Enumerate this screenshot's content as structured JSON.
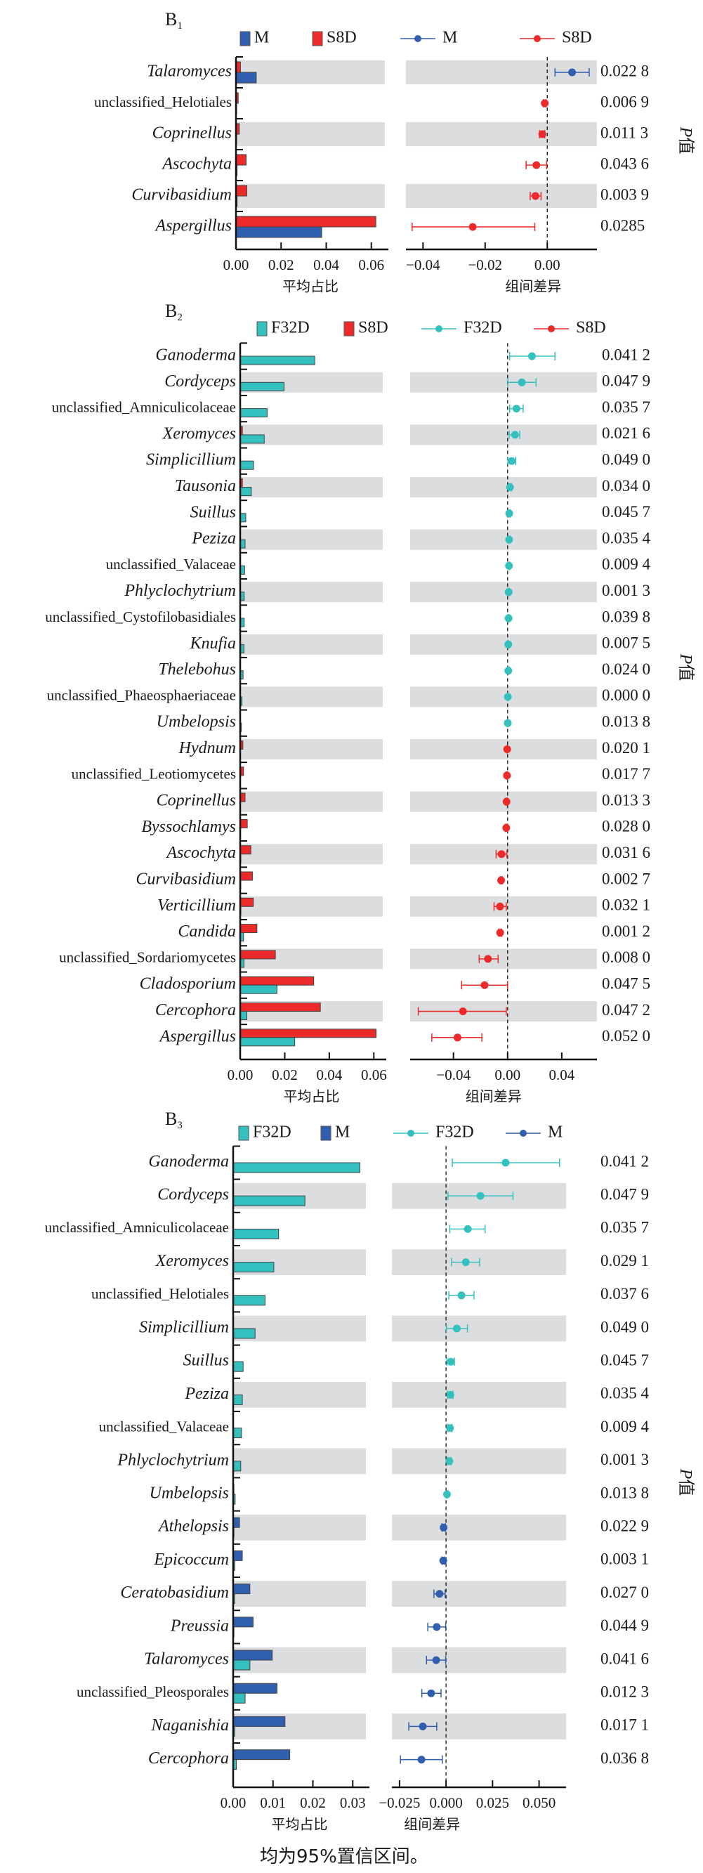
{
  "colors": {
    "M": "#2f5fae",
    "S8D": "#ec2a2a",
    "F32D": "#35c0c0",
    "band": "#dcdddf",
    "axis": "#111111"
  },
  "footnote": "均为95%置信区间。",
  "chart_data": [
    {
      "type": "bar",
      "panel_label": "B",
      "panel_sub": "1",
      "groups": [
        "M",
        "S8D"
      ],
      "legend": {
        "bar": [
          "M",
          "S8D"
        ],
        "point": [
          "M",
          "S8D"
        ]
      },
      "xlabel_left": "平均占比",
      "xlabel_right": "组间差异",
      "p_label": "P值",
      "left_xlim": [
        0,
        0.066
      ],
      "left_ticks": [
        "0.00",
        "0.02",
        "0.04",
        "0.06"
      ],
      "left_tick_values": [
        0,
        0.02,
        0.04,
        0.06
      ],
      "right_xlim": [
        -0.0455,
        0.016
      ],
      "right_ticks": [
        "−0.04",
        "−0.02",
        "0.00"
      ],
      "right_tick_values": [
        -0.04,
        -0.02,
        0
      ],
      "rows": [
        {
          "name": "Talaromyces",
          "italic": true,
          "bars": {
            "S8D": 0.002,
            "M": 0.009
          },
          "diff": 0.008,
          "ci": [
            0.0025,
            0.0135
          ],
          "higher": "M",
          "p": "0.022 8"
        },
        {
          "name": "unclassified_Helotiales",
          "italic": false,
          "bars": {
            "S8D": 0.001,
            "M": 0.0003
          },
          "diff": -0.0008,
          "ci": [
            -0.0012,
            -0.0004
          ],
          "higher": "S8D",
          "p": "0.006 9"
        },
        {
          "name": "Coprinellus",
          "italic": true,
          "bars": {
            "S8D": 0.0015,
            "M": 0.0003
          },
          "diff": -0.0016,
          "ci": [
            -0.0025,
            -0.0008
          ],
          "higher": "S8D",
          "p": "0.011 3"
        },
        {
          "name": "Ascochyta",
          "italic": true,
          "bars": {
            "S8D": 0.0045,
            "M": 0.0005
          },
          "diff": -0.0035,
          "ci": [
            -0.0068,
            -0.0002
          ],
          "higher": "S8D",
          "p": "0.043 6"
        },
        {
          "name": "Curvibasidium",
          "italic": true,
          "bars": {
            "S8D": 0.0048,
            "M": 0.0005
          },
          "diff": -0.0038,
          "ci": [
            -0.0055,
            -0.002
          ],
          "higher": "S8D",
          "p": "0.003 9"
        },
        {
          "name": "Aspergillus",
          "italic": true,
          "bars": {
            "S8D": 0.062,
            "M": 0.038
          },
          "diff": -0.024,
          "ci": [
            -0.0435,
            -0.004
          ],
          "higher": "S8D",
          "p": "0.0285"
        }
      ]
    },
    {
      "type": "bar",
      "panel_label": "B",
      "panel_sub": "2",
      "groups": [
        "F32D",
        "S8D"
      ],
      "legend": {
        "bar": [
          "F32D",
          "S8D"
        ],
        "point": [
          "F32D",
          "S8D"
        ]
      },
      "xlabel_left": "平均占比",
      "xlabel_right": "组间差异",
      "p_label": "P值",
      "left_xlim": [
        0,
        0.064
      ],
      "left_ticks": [
        "0.00",
        "0.02",
        "0.04",
        "0.06"
      ],
      "left_tick_values": [
        0,
        0.02,
        0.04,
        0.06
      ],
      "right_xlim": [
        -0.072,
        0.066
      ],
      "right_ticks": [
        "−0.04",
        "0.00",
        "0.04"
      ],
      "right_tick_values": [
        -0.04,
        0,
        0.04
      ],
      "rows": [
        {
          "name": "Ganoderma",
          "italic": true,
          "bars": {
            "F32D": 0.0335,
            "S8D": 0
          },
          "diff": 0.018,
          "ci": [
            0.0015,
            0.035
          ],
          "higher": "F32D",
          "p": "0.041 2"
        },
        {
          "name": "Cordyceps",
          "italic": true,
          "bars": {
            "F32D": 0.0197,
            "S8D": 0
          },
          "diff": 0.0105,
          "ci": [
            0.0002,
            0.021
          ],
          "higher": "F32D",
          "p": "0.047 9"
        },
        {
          "name": "unclassified_Amniculicolaceae",
          "italic": false,
          "bars": {
            "F32D": 0.0121,
            "S8D": 0
          },
          "diff": 0.0065,
          "ci": [
            0.0015,
            0.0115
          ],
          "higher": "F32D",
          "p": "0.035 7"
        },
        {
          "name": "Xeromyces",
          "italic": true,
          "bars": {
            "F32D": 0.0108,
            "S8D": 0.001
          },
          "diff": 0.0055,
          "ci": [
            0.0012,
            0.009
          ],
          "higher": "F32D",
          "p": "0.021 6"
        },
        {
          "name": "Simplicillium",
          "italic": true,
          "bars": {
            "F32D": 0.006,
            "S8D": 0
          },
          "diff": 0.003,
          "ci": [
            0.0002,
            0.006
          ],
          "higher": "F32D",
          "p": "0.049 0"
        },
        {
          "name": "Tausonia",
          "italic": true,
          "bars": {
            "F32D": 0.005,
            "S8D": 0.001
          },
          "diff": 0.0018,
          "ci": [
            0.0008,
            0.0028
          ],
          "higher": "F32D",
          "p": "0.034 0"
        },
        {
          "name": "Suillus",
          "italic": true,
          "bars": {
            "F32D": 0.0025,
            "S8D": 0
          },
          "diff": 0.0012,
          "ci": [
            0.0005,
            0.002
          ],
          "higher": "F32D",
          "p": "0.045 7"
        },
        {
          "name": "Peziza",
          "italic": true,
          "bars": {
            "F32D": 0.0022,
            "S8D": 0
          },
          "diff": 0.0011,
          "ci": [
            0.0004,
            0.0018
          ],
          "higher": "F32D",
          "p": "0.035 4"
        },
        {
          "name": "unclassified_Valaceae",
          "italic": false,
          "bars": {
            "F32D": 0.002,
            "S8D": 0
          },
          "diff": 0.001,
          "ci": [
            0.0005,
            0.0016
          ],
          "higher": "F32D",
          "p": "0.009 4"
        },
        {
          "name": "Phlyclochytrium",
          "italic": true,
          "bars": {
            "F32D": 0.0018,
            "S8D": 0
          },
          "diff": 0.0008,
          "ci": [
            0.0004,
            0.0012
          ],
          "higher": "F32D",
          "p": "0.001 3"
        },
        {
          "name": "unclassified_Cystofilobasidiales",
          "italic": false,
          "bars": {
            "F32D": 0.0018,
            "S8D": 0
          },
          "diff": 0.0007,
          "ci": [
            0.0002,
            0.0012
          ],
          "higher": "F32D",
          "p": "0.039 8"
        },
        {
          "name": "Knufia",
          "italic": true,
          "bars": {
            "F32D": 0.0017,
            "S8D": 0
          },
          "diff": 0.0005,
          "ci": [
            0.0002,
            0.0009
          ],
          "higher": "F32D",
          "p": "0.007 5"
        },
        {
          "name": "Thelebohus",
          "italic": true,
          "bars": {
            "F32D": 0.0013,
            "S8D": 0
          },
          "diff": 0.0005,
          "ci": [
            0.0001,
            0.0009
          ],
          "higher": "F32D",
          "p": "0.024 0"
        },
        {
          "name": "unclassified_Phaeosphaeriaceae",
          "italic": false,
          "bars": {
            "F32D": 0.0008,
            "S8D": 0
          },
          "diff": 0.0002,
          "ci": [
            0.0001,
            0.0003
          ],
          "higher": "F32D",
          "p": "0.000 0"
        },
        {
          "name": "Umbelopsis",
          "italic": true,
          "bars": {
            "F32D": 0.0005,
            "S8D": 0
          },
          "diff": 0.0001,
          "ci": [
            0.0,
            0.0003
          ],
          "higher": "F32D",
          "p": "0.013 8"
        },
        {
          "name": "Hydnum",
          "italic": true,
          "bars": {
            "F32D": 0,
            "S8D": 0.0012
          },
          "diff": -0.0003,
          "ci": [
            -0.0006,
            -0.0001
          ],
          "higher": "S8D",
          "p": "0.020 1"
        },
        {
          "name": "unclassified_Leotiomycetes",
          "italic": false,
          "bars": {
            "F32D": 0,
            "S8D": 0.0015
          },
          "diff": -0.0005,
          "ci": [
            -0.0009,
            -0.0001
          ],
          "higher": "S8D",
          "p": "0.017 7"
        },
        {
          "name": "Coprinellus",
          "italic": true,
          "bars": {
            "F32D": 0,
            "S8D": 0.0022
          },
          "diff": -0.0008,
          "ci": [
            -0.0012,
            -0.0004
          ],
          "higher": "S8D",
          "p": "0.013 3"
        },
        {
          "name": "Byssochlamys",
          "italic": true,
          "bars": {
            "F32D": 0.0002,
            "S8D": 0.0032
          },
          "diff": -0.001,
          "ci": [
            -0.0016,
            -0.0004
          ],
          "higher": "S8D",
          "p": "0.028 0"
        },
        {
          "name": "Ascochyta",
          "italic": true,
          "bars": {
            "F32D": 0.0003,
            "S8D": 0.0048
          },
          "diff": -0.0045,
          "ci": [
            -0.0085,
            -0.0005
          ],
          "higher": "S8D",
          "p": "0.031 6"
        },
        {
          "name": "Curvibasidium",
          "italic": true,
          "bars": {
            "F32D": 0.0003,
            "S8D": 0.0055
          },
          "diff": -0.0048,
          "ci": [
            -0.0055,
            -0.004
          ],
          "higher": "S8D",
          "p": "0.002 7"
        },
        {
          "name": "Verticillium",
          "italic": true,
          "bars": {
            "F32D": 0.0003,
            "S8D": 0.0059
          },
          "diff": -0.0056,
          "ci": [
            -0.01,
            -0.001
          ],
          "higher": "S8D",
          "p": "0.032 1"
        },
        {
          "name": "Candida",
          "italic": true,
          "bars": {
            "F32D": 0.0015,
            "S8D": 0.0075
          },
          "diff": -0.0055,
          "ci": [
            -0.0065,
            -0.0045
          ],
          "higher": "S8D",
          "p": "0.001 2"
        },
        {
          "name": "unclassified_Sordariomycetes",
          "italic": false,
          "bars": {
            "F32D": 0.0017,
            "S8D": 0.0158
          },
          "diff": -0.0145,
          "ci": [
            -0.021,
            -0.007
          ],
          "higher": "S8D",
          "p": "0.008 0"
        },
        {
          "name": "Cladosporium",
          "italic": true,
          "bars": {
            "F32D": 0.0165,
            "S8D": 0.033
          },
          "diff": -0.017,
          "ci": [
            -0.034,
            0.0
          ],
          "higher": "S8D",
          "p": "0.047 5"
        },
        {
          "name": "Cercophora",
          "italic": true,
          "bars": {
            "F32D": 0.003,
            "S8D": 0.036
          },
          "diff": -0.033,
          "ci": [
            -0.066,
            -0.001
          ],
          "higher": "S8D",
          "p": "0.047 2"
        },
        {
          "name": "Aspergillus",
          "italic": true,
          "bars": {
            "F32D": 0.0245,
            "S8D": 0.061
          },
          "diff": -0.037,
          "ci": [
            -0.056,
            -0.019
          ],
          "higher": "S8D",
          "p": "0.052 0"
        }
      ]
    },
    {
      "type": "bar",
      "panel_label": "B",
      "panel_sub": "3",
      "groups": [
        "F32D",
        "M"
      ],
      "legend": {
        "bar": [
          "F32D",
          "M"
        ],
        "point": [
          "F32D",
          "M"
        ]
      },
      "xlabel_left": "平均占比",
      "xlabel_right": "组间差异",
      "p_label": "P值",
      "left_xlim": [
        0,
        0.0333
      ],
      "left_ticks": [
        "0.00",
        "0.01",
        "0.02",
        "0.03"
      ],
      "left_tick_values": [
        0,
        0.01,
        0.02,
        0.03
      ],
      "right_xlim": [
        -0.0291,
        0.0645
      ],
      "right_ticks": [
        "−0.025",
        "0.000",
        "0.025",
        "0.050"
      ],
      "right_tick_values": [
        -0.025,
        0,
        0.025,
        0.05
      ],
      "rows": [
        {
          "name": "Ganoderma",
          "italic": true,
          "bars": {
            "F32D": 0.0318,
            "M": 0
          },
          "diff": 0.032,
          "ci": [
            0.0034,
            0.061
          ],
          "higher": "F32D",
          "p": "0.041 2"
        },
        {
          "name": "Cordyceps",
          "italic": true,
          "bars": {
            "F32D": 0.018,
            "M": 0
          },
          "diff": 0.0185,
          "ci": [
            0.001,
            0.036
          ],
          "higher": "F32D",
          "p": "0.047 9"
        },
        {
          "name": "unclassified_Amniculicolaceae",
          "italic": false,
          "bars": {
            "F32D": 0.0114,
            "M": 0
          },
          "diff": 0.0117,
          "ci": [
            0.002,
            0.021
          ],
          "higher": "F32D",
          "p": "0.035 7"
        },
        {
          "name": "Xeromyces",
          "italic": true,
          "bars": {
            "F32D": 0.0102,
            "M": 0
          },
          "diff": 0.0106,
          "ci": [
            0.003,
            0.018
          ],
          "higher": "F32D",
          "p": "0.029 1"
        },
        {
          "name": "unclassified_Helotiales",
          "italic": false,
          "bars": {
            "F32D": 0.008,
            "M": 0
          },
          "diff": 0.0083,
          "ci": [
            0.0015,
            0.015
          ],
          "higher": "F32D",
          "p": "0.037 6"
        },
        {
          "name": "Simplicillium",
          "italic": true,
          "bars": {
            "F32D": 0.0055,
            "M": 0
          },
          "diff": 0.0058,
          "ci": [
            0.0002,
            0.0115
          ],
          "higher": "F32D",
          "p": "0.049 0"
        },
        {
          "name": "Suillus",
          "italic": true,
          "bars": {
            "F32D": 0.0025,
            "M": 0
          },
          "diff": 0.0026,
          "ci": [
            0.0005,
            0.0045
          ],
          "higher": "F32D",
          "p": "0.045 7"
        },
        {
          "name": "Peziza",
          "italic": true,
          "bars": {
            "F32D": 0.0023,
            "M": 0
          },
          "diff": 0.0023,
          "ci": [
            0.0008,
            0.0038
          ],
          "higher": "F32D",
          "p": "0.035 4"
        },
        {
          "name": "unclassified_Valaceae",
          "italic": false,
          "bars": {
            "F32D": 0.0021,
            "M": 0
          },
          "diff": 0.0021,
          "ci": [
            0.001,
            0.0032
          ],
          "higher": "F32D",
          "p": "0.009 4"
        },
        {
          "name": "Phlyclochytrium",
          "italic": true,
          "bars": {
            "F32D": 0.0019,
            "M": 0
          },
          "diff": 0.0018,
          "ci": [
            0.0008,
            0.0028
          ],
          "higher": "F32D",
          "p": "0.001 3"
        },
        {
          "name": "Umbelopsis",
          "italic": true,
          "bars": {
            "F32D": 0.0005,
            "M": 0.0002
          },
          "diff": 0.0005,
          "ci": [
            0.0002,
            0.0008
          ],
          "higher": "F32D",
          "p": "0.013 8"
        },
        {
          "name": "Athelopsis",
          "italic": true,
          "bars": {
            "F32D": 0.0002,
            "M": 0.0016
          },
          "diff": -0.0013,
          "ci": [
            -0.0022,
            -0.0004
          ],
          "higher": "M",
          "p": "0.022 9"
        },
        {
          "name": "Epicoccum",
          "italic": true,
          "bars": {
            "F32D": 0.0004,
            "M": 0.0023
          },
          "diff": -0.0015,
          "ci": [
            -0.0022,
            -0.0008
          ],
          "higher": "M",
          "p": "0.003 1"
        },
        {
          "name": "Ceratobasidium",
          "italic": true,
          "bars": {
            "F32D": 0.0004,
            "M": 0.0042
          },
          "diff": -0.0035,
          "ci": [
            -0.0065,
            -0.0005
          ],
          "higher": "M",
          "p": "0.027 0"
        },
        {
          "name": "Preussia",
          "italic": true,
          "bars": {
            "F32D": 0.0002,
            "M": 0.005
          },
          "diff": -0.005,
          "ci": [
            -0.0098,
            -0.0002
          ],
          "higher": "M",
          "p": "0.044 9"
        },
        {
          "name": "Talaromyces",
          "italic": true,
          "bars": {
            "F32D": 0.0042,
            "M": 0.0098
          },
          "diff": -0.0053,
          "ci": [
            -0.0105,
            -0.0002
          ],
          "higher": "M",
          "p": "0.041 6"
        },
        {
          "name": "unclassified_Pleosporales",
          "italic": false,
          "bars": {
            "F32D": 0.003,
            "M": 0.011
          },
          "diff": -0.008,
          "ci": [
            -0.013,
            -0.0027
          ],
          "higher": "M",
          "p": "0.012 3"
        },
        {
          "name": "Naganishia",
          "italic": true,
          "bars": {
            "F32D": 0.0004,
            "M": 0.013
          },
          "diff": -0.0125,
          "ci": [
            -0.02,
            -0.005
          ],
          "higher": "M",
          "p": "0.017 1"
        },
        {
          "name": "Cercophora",
          "italic": true,
          "bars": {
            "F32D": 0.0008,
            "M": 0.0142
          },
          "diff": -0.0132,
          "ci": [
            -0.0245,
            -0.002
          ],
          "higher": "M",
          "p": "0.036 8"
        }
      ]
    }
  ]
}
